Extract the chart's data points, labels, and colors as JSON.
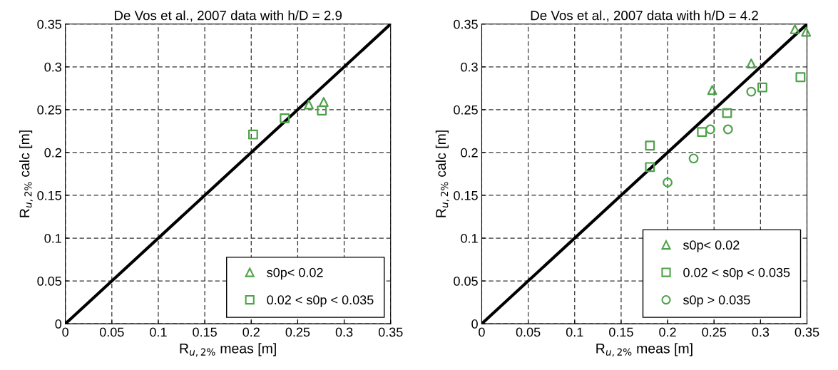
{
  "chart_data": [
    {
      "type": "scatter",
      "title": "De Vos et al., 2007 data with h/D = 2.9",
      "xlabel": "R$_{u,2%}$ meas [m]",
      "ylabel": "R$_{u,2%}$ calc [m]",
      "xlim": [
        0,
        0.35
      ],
      "ylim": [
        0,
        0.35
      ],
      "xticks": [
        0,
        0.05,
        0.1,
        0.15,
        0.2,
        0.25,
        0.3,
        0.35
      ],
      "yticks": [
        0,
        0.05,
        0.1,
        0.15,
        0.2,
        0.25,
        0.3,
        0.35
      ],
      "grid": true,
      "legend": "bottom right",
      "series": [
        {
          "name": "s0p< 0.02",
          "color": "#4ea24a",
          "marker": "triangle",
          "x": [
            0.262,
            0.278
          ],
          "values": [
            0.256,
            0.259
          ]
        },
        {
          "name": "0.02 < s0p < 0.035",
          "color": "#4ea24a",
          "marker": "square",
          "x": [
            0.276,
            0.236,
            0.202
          ],
          "values": [
            0.249,
            0.24,
            0.221
          ]
        },
        {
          "type": "line",
          "color": "#000000",
          "marker": "none",
          "x": [
            0,
            0.35
          ],
          "values": [
            0,
            0.35
          ]
        }
      ]
    },
    {
      "type": "scatter",
      "title": "De Vos et al., 2007 data with h/D = 4.2",
      "xlabel": "R$_{u,2%}$ meas [m]",
      "ylabel": "R$_{u,2%}$ calc [m]",
      "xlim": [
        0,
        0.35
      ],
      "ylim": [
        0,
        0.35
      ],
      "xticks": [
        0,
        0.05,
        0.1,
        0.15,
        0.2,
        0.25,
        0.3,
        0.35
      ],
      "yticks": [
        0,
        0.05,
        0.1,
        0.15,
        0.2,
        0.25,
        0.3,
        0.35
      ],
      "grid": true,
      "legend": "bottom right",
      "series": [
        {
          "name": "s0p< 0.02",
          "color": "#4ea24a",
          "marker": "triangle",
          "x": [
            0.337,
            0.349,
            0.29,
            0.248
          ],
          "values": [
            0.344,
            0.341,
            0.304,
            0.273
          ]
        },
        {
          "name": "0.02 < s0p < 0.035",
          "color": "#4ea24a",
          "marker": "square",
          "x": [
            0.343,
            0.302,
            0.264,
            0.237,
            0.181,
            0.181
          ],
          "values": [
            0.288,
            0.276,
            0.246,
            0.224,
            0.208,
            0.183
          ]
        },
        {
          "name": "s0p > 0.035",
          "color": "#4ea24a",
          "marker": "circle",
          "x": [
            0.29,
            0.246,
            0.265,
            0.228,
            0.2
          ],
          "values": [
            0.271,
            0.227,
            0.227,
            0.193,
            0.165
          ]
        },
        {
          "type": "line",
          "color": "#000000",
          "marker": "none",
          "x": [
            0,
            0.35
          ],
          "values": [
            0,
            0.35
          ]
        }
      ]
    }
  ]
}
